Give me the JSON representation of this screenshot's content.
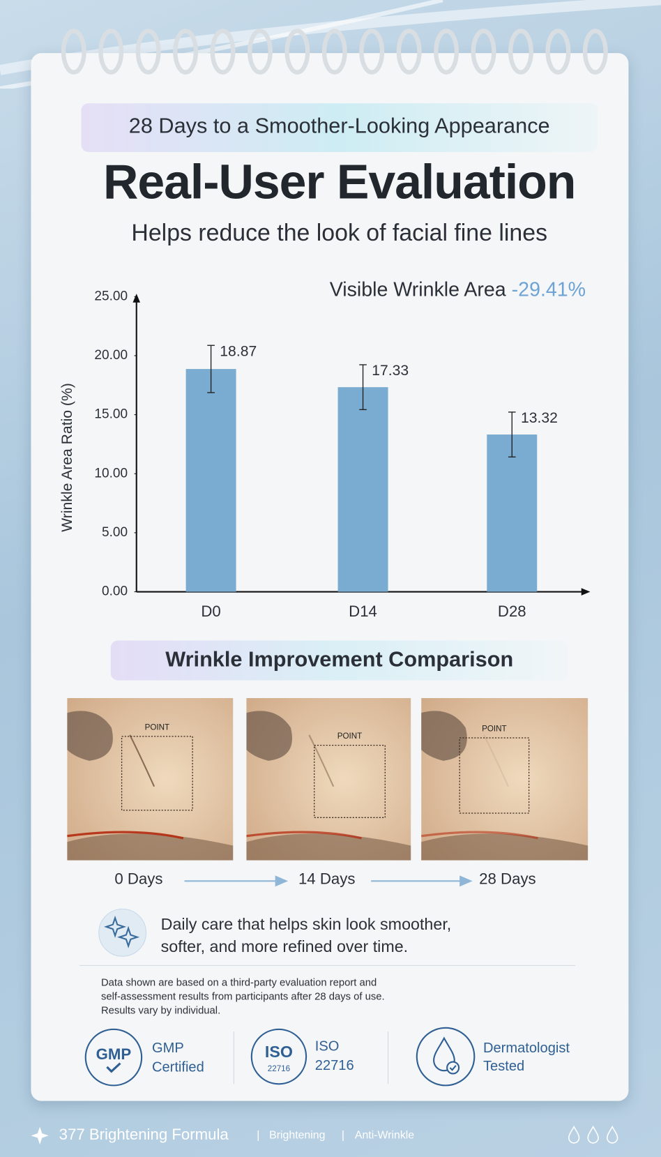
{
  "header": {
    "subtitle_top": "28 Days to a Smoother-Looking Appearance",
    "title": "Real-User Evaluation",
    "tagline": "Helps reduce the look of facial fine lines"
  },
  "chart_data": {
    "type": "bar",
    "annotation": {
      "label": "Visible Wrinkle Area",
      "value": "-29.41%"
    },
    "y_label": "Wrinkle Area Ratio (%)",
    "categories": [
      "D0",
      "D14",
      "D28"
    ],
    "values": [
      18.87,
      17.33,
      13.32
    ],
    "errors": [
      2.0,
      1.9,
      1.9
    ],
    "color": "#7aabd0",
    "ylim": [
      0,
      25
    ],
    "yticks": [
      {
        "value": 0,
        "label": "0.00"
      },
      {
        "value": 5,
        "label": "5.00"
      },
      {
        "value": 10,
        "label": "10.00"
      },
      {
        "value": 15,
        "label": "15.00"
      },
      {
        "value": 20,
        "label": "20.00"
      },
      {
        "value": 25,
        "label": "25.00"
      }
    ]
  },
  "comparison": {
    "title": "Wrinkle Improvement Comparison",
    "images": [
      {
        "label": "POINT",
        "caption": "0 Days"
      },
      {
        "label": "POINT",
        "caption": "14 Days"
      },
      {
        "label": "POINT",
        "caption": "28 Days"
      }
    ]
  },
  "note": {
    "lines": [
      "Daily care that helps skin look smoother,",
      "softer, and more refined over time."
    ]
  },
  "disclaimer": {
    "lines": [
      "Data shown are based on a third-party evaluation report and",
      "self-assessment results from participants after 28 days of use.",
      "Results vary by individual."
    ]
  },
  "badges": [
    {
      "icon_text": "GMP",
      "label_lines": [
        "GMP",
        "Certified"
      ]
    },
    {
      "icon_text": [
        "ISO",
        "22716"
      ],
      "label_lines": [
        "ISO",
        "22716"
      ]
    },
    {
      "label_lines": [
        "Dermatologist",
        "Tested"
      ]
    }
  ],
  "footer": {
    "brand": "377 Brightening Formula",
    "tags": [
      "Brightening",
      "Anti-Wrinkle"
    ]
  }
}
